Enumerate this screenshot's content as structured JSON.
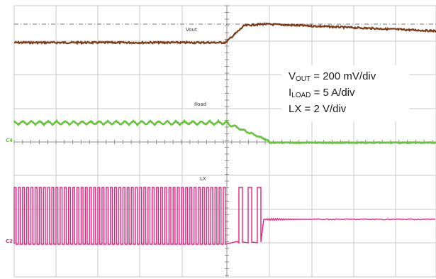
{
  "chart_data": {
    "type": "line",
    "title": "",
    "grid": true,
    "x": {
      "divisions": 10
    },
    "series": [
      {
        "name": "Vout",
        "color": "#7a3b1a",
        "channel": "1",
        "description": "flat level, rises after load step then slowly decays"
      },
      {
        "name": "Iload",
        "color": "#66c43a",
        "channel": "4",
        "description": "triangular ripple before step, steps down to zero ~mid-screen"
      },
      {
        "name": "LX",
        "color": "#e8237d",
        "channel": "2",
        "description": "switching square wave, stops at load step then rings and settles"
      }
    ],
    "trace_labels": {
      "vout": "Vout",
      "load": "Iload",
      "lx": "LX"
    },
    "channel_markers": {
      "load": "C4",
      "lx": "C2"
    },
    "legend": {
      "vout": {
        "main": "V",
        "sub": "OUT",
        "rest": " = 200 mV/div"
      },
      "iload": {
        "main": "I",
        "sub": "LOAD",
        "rest": " = 5 A/div"
      },
      "lx": {
        "main": "LX",
        "sub": "",
        "rest": " = 2 V/div"
      },
      "placement": "top-right"
    }
  }
}
